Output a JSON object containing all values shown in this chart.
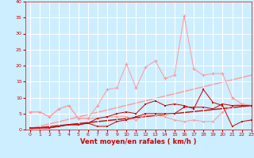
{
  "xlabel": "Vent moyen/en rafales ( km/h )",
  "bg_color": "#cceeff",
  "grid_color": "#ffffff",
  "x_values": [
    0,
    1,
    2,
    3,
    4,
    5,
    6,
    7,
    8,
    9,
    10,
    11,
    12,
    13,
    14,
    15,
    16,
    17,
    18,
    19,
    20,
    21,
    22,
    23
  ],
  "line_light1": [
    5.5,
    5.5,
    4.0,
    6.5,
    7.5,
    3.5,
    3.5,
    3.5,
    4.0,
    4.0,
    4.0,
    3.0,
    4.5,
    4.5,
    4.0,
    3.0,
    2.5,
    3.0,
    2.5,
    2.5,
    5.5,
    7.5,
    8.0,
    7.5
  ],
  "line_light2": [
    5.5,
    5.5,
    4.0,
    6.5,
    7.5,
    3.5,
    3.5,
    7.5,
    12.5,
    13.0,
    20.5,
    13.0,
    19.5,
    21.5,
    16.0,
    17.0,
    35.5,
    19.0,
    17.0,
    17.5,
    17.5,
    10.0,
    8.0,
    7.5
  ],
  "line_dark1": [
    0.5,
    0.5,
    0.5,
    1.0,
    1.5,
    1.5,
    2.0,
    1.0,
    1.0,
    2.5,
    3.0,
    4.0,
    5.0,
    5.0,
    5.0,
    5.0,
    7.0,
    7.0,
    7.0,
    6.5,
    8.0,
    7.5,
    7.5,
    7.5
  ],
  "line_dark2": [
    0.5,
    0.5,
    0.5,
    1.0,
    1.5,
    1.5,
    2.0,
    3.5,
    4.0,
    5.0,
    5.5,
    5.0,
    8.0,
    9.0,
    7.5,
    8.0,
    7.5,
    6.5,
    12.5,
    8.5,
    7.5,
    1.0,
    2.5,
    3.0
  ],
  "trend_light": [
    0,
    23,
    0.3,
    17.0
  ],
  "trend_dark": [
    0,
    23,
    0.3,
    7.5
  ],
  "color_light": "#ff9999",
  "color_dark": "#cc0000",
  "color_darkred": "#880000",
  "ylim": [
    0,
    40
  ],
  "xlim": [
    -0.5,
    23
  ],
  "yticks": [
    0,
    5,
    10,
    15,
    20,
    25,
    30,
    35,
    40
  ],
  "xticks": [
    0,
    1,
    2,
    3,
    4,
    5,
    6,
    7,
    8,
    9,
    10,
    11,
    12,
    13,
    14,
    15,
    16,
    17,
    18,
    19,
    20,
    21,
    22,
    23
  ],
  "xlabel_fontsize": 6,
  "tick_fontsize": 4.5
}
